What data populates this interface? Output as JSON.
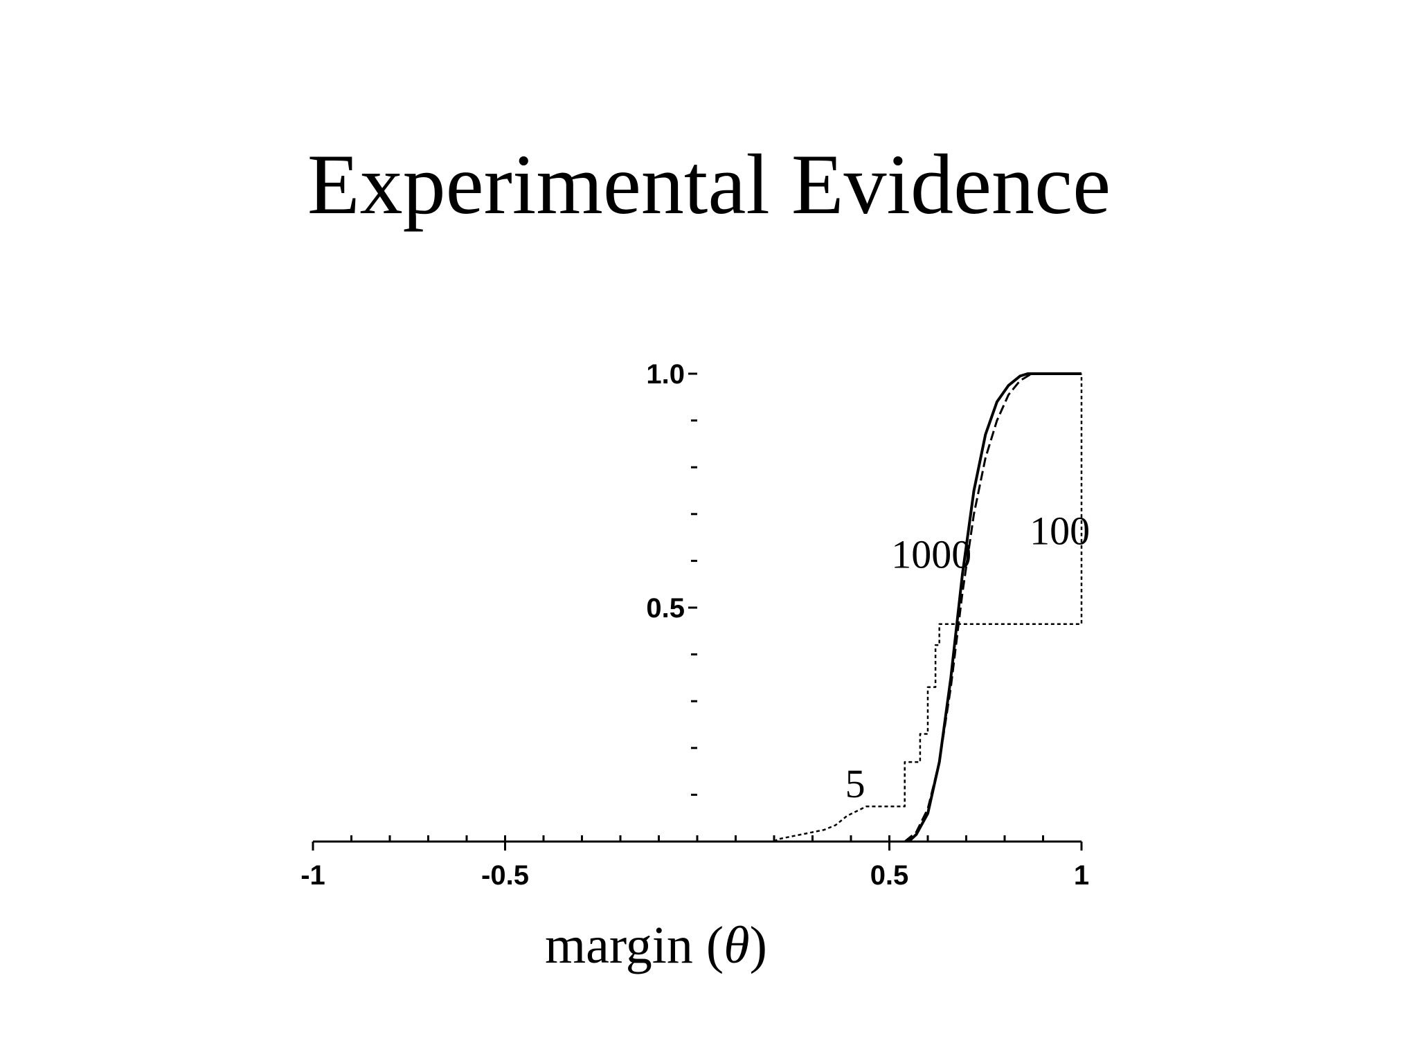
{
  "slide": {
    "title": "Experimental Evidence"
  },
  "chart_data": {
    "type": "line",
    "title": "",
    "xlabel": "margin",
    "xlabel_symbol": "θ",
    "ylabel": "",
    "xlim": [
      -1,
      1
    ],
    "ylim": [
      0,
      1
    ],
    "x_tick_labels": [
      {
        "value": -1,
        "label": "-1"
      },
      {
        "value": -0.5,
        "label": "-0.5"
      },
      {
        "value": 0.5,
        "label": "0.5"
      },
      {
        "value": 1,
        "label": "1"
      }
    ],
    "y_tick_labels": [
      {
        "value": 1.0,
        "label": "1.0"
      },
      {
        "value": 0.5,
        "label": "0.5"
      }
    ],
    "x_minor_ticks": [
      -0.9,
      -0.8,
      -0.7,
      -0.6,
      -0.5,
      -0.4,
      -0.3,
      -0.2,
      -0.1,
      0,
      0.1,
      0.2,
      0.3,
      0.4,
      0.5,
      0.6,
      0.7,
      0.8,
      0.9
    ],
    "y_minor_ticks": [
      0.1,
      0.2,
      0.3,
      0.4,
      0.6,
      0.7,
      0.8,
      0.9
    ],
    "grid": false,
    "legend": "none",
    "series": [
      {
        "name": "5",
        "style": "dotted",
        "step": true,
        "label_at": [
          0.385,
          0.095
        ],
        "points": [
          [
            0.2,
            0
          ],
          [
            0.21,
            0.005
          ],
          [
            0.24,
            0.01
          ],
          [
            0.27,
            0.015
          ],
          [
            0.3,
            0.02
          ],
          [
            0.33,
            0.025
          ],
          [
            0.36,
            0.035
          ],
          [
            0.39,
            0.055
          ],
          [
            0.44,
            0.075
          ],
          [
            0.54,
            0.075
          ],
          [
            0.54,
            0.17
          ],
          [
            0.58,
            0.17
          ],
          [
            0.58,
            0.23
          ],
          [
            0.6,
            0.23
          ],
          [
            0.6,
            0.33
          ],
          [
            0.62,
            0.33
          ],
          [
            0.62,
            0.42
          ],
          [
            0.63,
            0.42
          ],
          [
            0.63,
            0.465
          ],
          [
            1.0,
            0.465
          ],
          [
            1.0,
            1.0
          ]
        ]
      },
      {
        "name": "100",
        "style": "dashed",
        "label_at": [
          0.865,
          0.635
        ],
        "points": [
          [
            0.54,
            0
          ],
          [
            0.57,
            0.02
          ],
          [
            0.6,
            0.07
          ],
          [
            0.63,
            0.17
          ],
          [
            0.66,
            0.33
          ],
          [
            0.69,
            0.53
          ],
          [
            0.72,
            0.7
          ],
          [
            0.75,
            0.82
          ],
          [
            0.78,
            0.9
          ],
          [
            0.81,
            0.955
          ],
          [
            0.84,
            0.985
          ],
          [
            0.87,
            1.0
          ],
          [
            1.0,
            1.0
          ]
        ]
      },
      {
        "name": "1000",
        "style": "solid",
        "label_at": [
          0.505,
          0.585
        ],
        "points": [
          [
            0.55,
            0
          ],
          [
            0.57,
            0.015
          ],
          [
            0.6,
            0.06
          ],
          [
            0.63,
            0.17
          ],
          [
            0.66,
            0.35
          ],
          [
            0.69,
            0.57
          ],
          [
            0.72,
            0.75
          ],
          [
            0.75,
            0.87
          ],
          [
            0.78,
            0.94
          ],
          [
            0.81,
            0.975
          ],
          [
            0.84,
            0.995
          ],
          [
            0.86,
            1.0
          ],
          [
            1.0,
            1.0
          ]
        ]
      }
    ]
  }
}
